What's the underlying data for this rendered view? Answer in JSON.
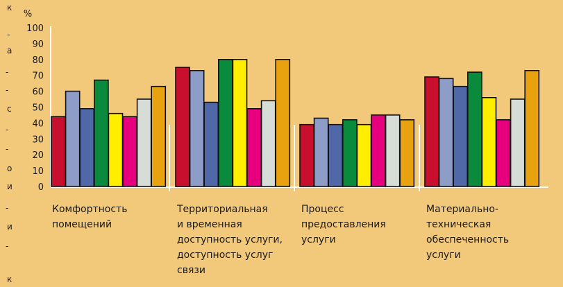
{
  "chart_data": {
    "type": "bar",
    "ylabel": "%",
    "ylim": [
      0,
      100
    ],
    "yticks": [
      "0",
      "10",
      "20",
      "30",
      "40",
      "50",
      "60",
      "70",
      "80",
      "90",
      "100"
    ],
    "grid": false,
    "categories": [
      [
        "Комфортность",
        "помещений"
      ],
      [
        "Территориальная",
        "и временная",
        "доступность услуги,",
        "доступность услуг",
        "связи"
      ],
      [
        "Процесс",
        "предоставления",
        "услуги"
      ],
      [
        "Материально-",
        "техническая",
        "обеспеченность",
        "услуги"
      ]
    ],
    "series": [
      {
        "color": "#c8102e",
        "values": [
          44,
          75,
          39,
          69
        ]
      },
      {
        "color": "#8e9dc8",
        "values": [
          60,
          73,
          43,
          68
        ]
      },
      {
        "color": "#5068a8",
        "values": [
          49,
          53,
          39,
          63
        ]
      },
      {
        "color": "#0a8a3c",
        "values": [
          67,
          80,
          42,
          72
        ]
      },
      {
        "color": "#ffee00",
        "values": [
          46,
          80,
          39,
          56
        ]
      },
      {
        "color": "#e6007e",
        "values": [
          44,
          49,
          45,
          42
        ]
      },
      {
        "color": "#d6dcd6",
        "values": [
          55,
          54,
          45,
          55
        ]
      },
      {
        "color": "#e8a210",
        "values": [
          63,
          80,
          42,
          73
        ]
      }
    ]
  },
  "margin_fragments": [
    "к",
    "-",
    "а",
    "-",
    "-",
    "с",
    "-",
    "-",
    "о",
    "и",
    "-",
    "и",
    "-",
    "к"
  ]
}
